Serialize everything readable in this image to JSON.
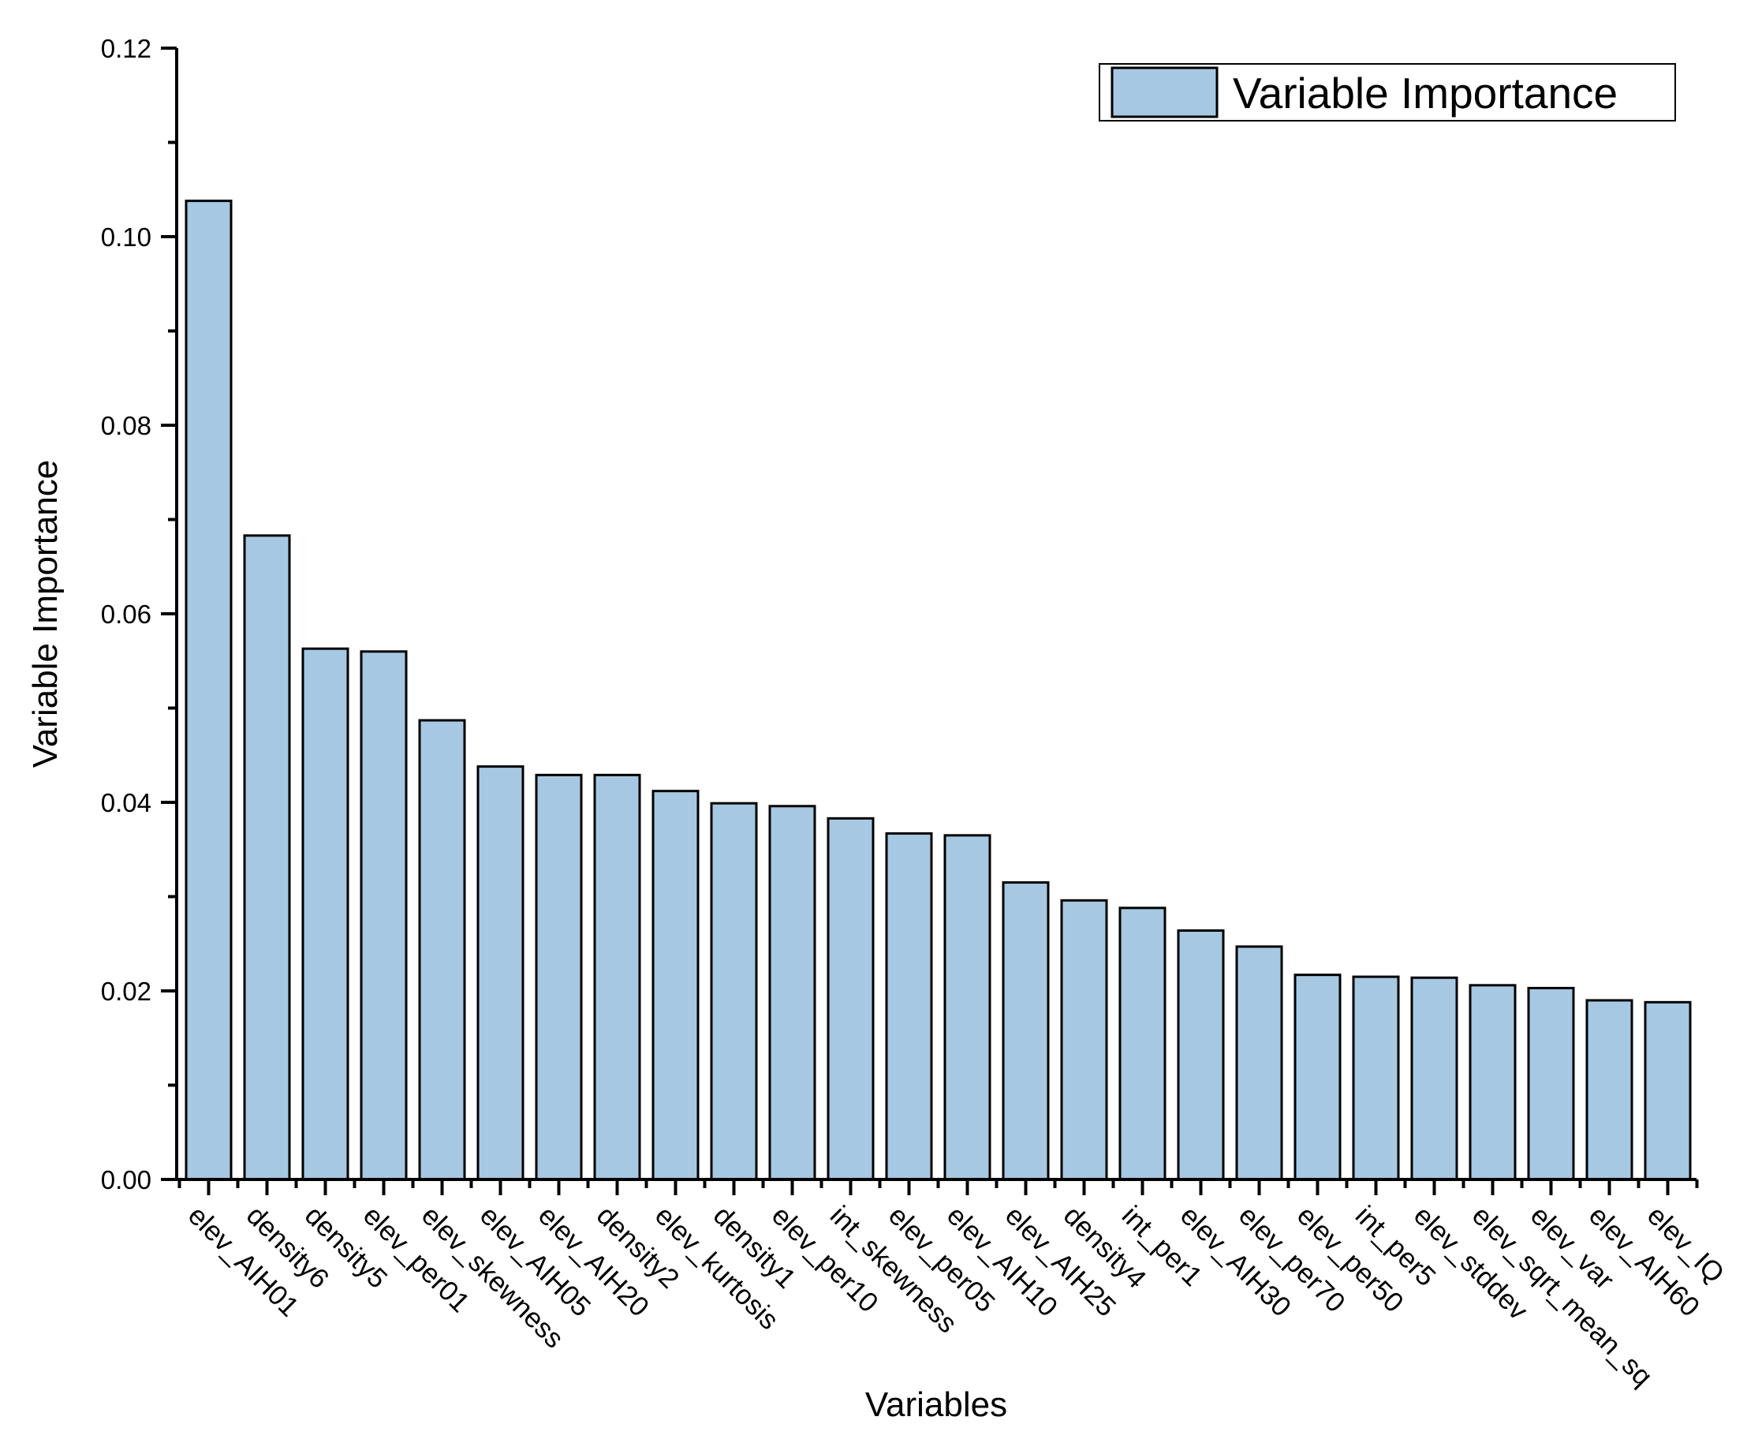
{
  "chart_data": {
    "type": "bar",
    "title": "",
    "xlabel": "Variables",
    "ylabel": "Variable Importance",
    "ylim": [
      0,
      0.12
    ],
    "yticks": [
      "0.00",
      "0.02",
      "0.04",
      "0.06",
      "0.08",
      "0.10",
      "0.12"
    ],
    "grid": false,
    "legend_position": "top-right",
    "bar_color": "#a6c8e2",
    "edge_color": "#000000",
    "categories": [
      "elev_AIH01",
      "density6",
      "density5",
      "elev_per01",
      "elev_skewness",
      "elev_AIH05",
      "elev_AIH20",
      "density2",
      "elev_kurtosis",
      "density1",
      "elev_per10",
      "int_skewness",
      "elev_per05",
      "elev_AIH10",
      "elev_AIH25",
      "density4",
      "int_per1",
      "elev_AIH30",
      "elev_per70",
      "elev_per50",
      "int_per5",
      "elev_stddev",
      "elev_sqrt_mean_sq",
      "elev_var",
      "elev_AIH60",
      "elev_IQ"
    ],
    "series": [
      {
        "name": "Variable Importance",
        "values": [
          0.1038,
          0.0683,
          0.0563,
          0.056,
          0.0487,
          0.0438,
          0.0429,
          0.0429,
          0.0412,
          0.0399,
          0.0396,
          0.0383,
          0.0367,
          0.0365,
          0.0315,
          0.0296,
          0.0288,
          0.0264,
          0.0247,
          0.0217,
          0.0215,
          0.0214,
          0.0206,
          0.0203,
          0.019,
          0.0188
        ]
      }
    ]
  }
}
